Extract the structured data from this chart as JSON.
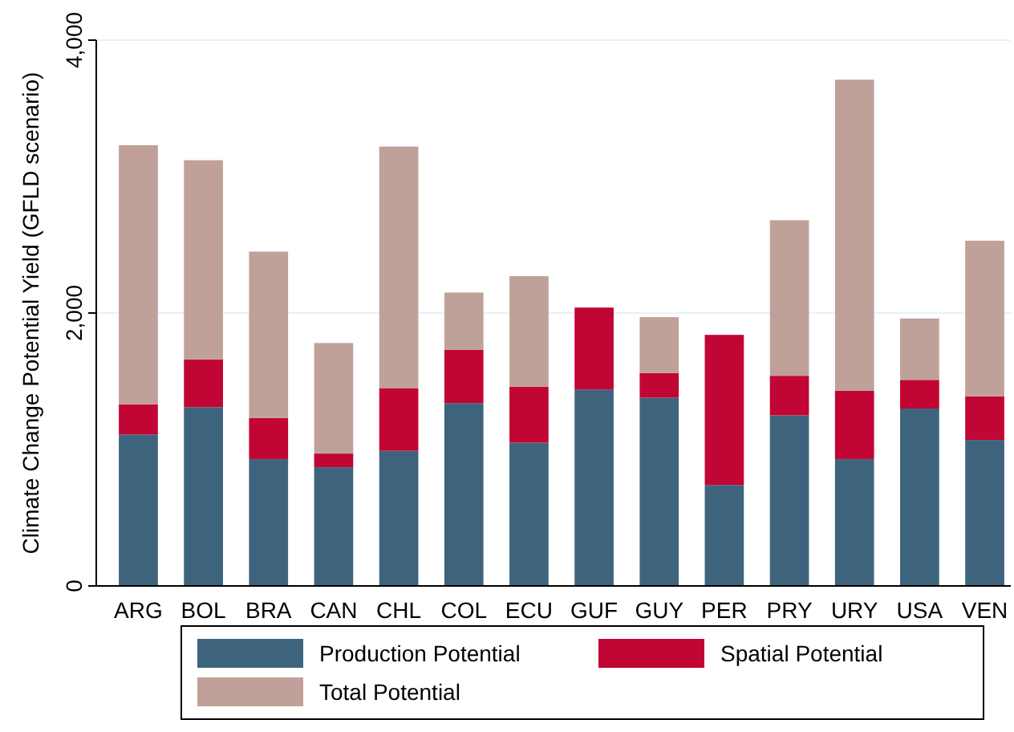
{
  "chart_data": {
    "type": "bar",
    "stacked": true,
    "ylabel": "Climate Change Potential Yield (GFLD scenario)",
    "categories": [
      "ARG",
      "BOL",
      "BRA",
      "CAN",
      "CHL",
      "COL",
      "ECU",
      "GUF",
      "GUY",
      "PER",
      "PRY",
      "URY",
      "USA",
      "VEN"
    ],
    "series": [
      {
        "name": "Production Potential",
        "color": "#3e647d",
        "values": [
          1110,
          1310,
          930,
          870,
          990,
          1340,
          1050,
          1440,
          1380,
          740,
          1250,
          930,
          1300,
          1070
        ]
      },
      {
        "name": "Spatial Potential",
        "color": "#c10534",
        "values": [
          220,
          350,
          300,
          100,
          460,
          390,
          410,
          600,
          180,
          1100,
          290,
          500,
          210,
          320
        ]
      },
      {
        "name": "Total Potential",
        "color": "#bfa19a",
        "values": [
          1900,
          1460,
          1220,
          810,
          1770,
          420,
          810,
          0,
          410,
          0,
          1140,
          2280,
          450,
          1140
        ]
      }
    ],
    "ylim": [
      0,
      4000
    ],
    "yticks": [
      {
        "value": 0,
        "label": "0"
      },
      {
        "value": 2000,
        "label": "2,000"
      },
      {
        "value": 4000,
        "label": "4,000"
      }
    ],
    "grid": "y",
    "legend": "bottom"
  }
}
